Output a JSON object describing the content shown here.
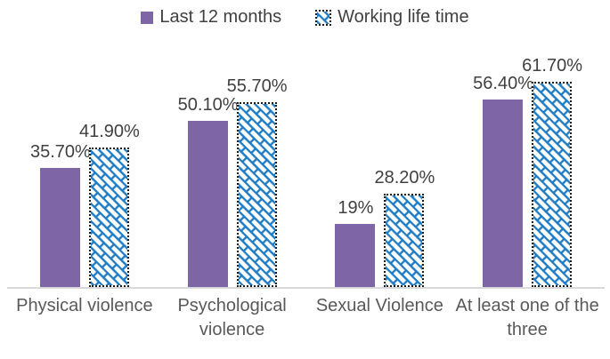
{
  "chart_data": {
    "type": "bar",
    "categories": [
      "Physical violence",
      "Psychological violence",
      "Sexual Violence",
      "At least one of the three"
    ],
    "series": [
      {
        "name": "Last 12 months",
        "fill": "solid",
        "color": "#7E66A6",
        "values": [
          35.7,
          50.1,
          19,
          56.4
        ],
        "labels": [
          "35.70%",
          "50.10%",
          "19%",
          "56.40%"
        ]
      },
      {
        "name": "Working life time",
        "fill": "diagonal-weave-pattern",
        "color": "#1F7CC4",
        "border": "dotted #1a1a1a",
        "values": [
          41.9,
          55.7,
          28.2,
          61.7
        ],
        "labels": [
          "41.90%",
          "55.70%",
          "28.20%",
          "61.70%"
        ]
      }
    ],
    "legend_position": "top",
    "grid": false,
    "axis_line_color": "#D9D9D9",
    "data_label_color": "#404040",
    "category_label_color": "#595959",
    "background": "#FFFFFF"
  }
}
